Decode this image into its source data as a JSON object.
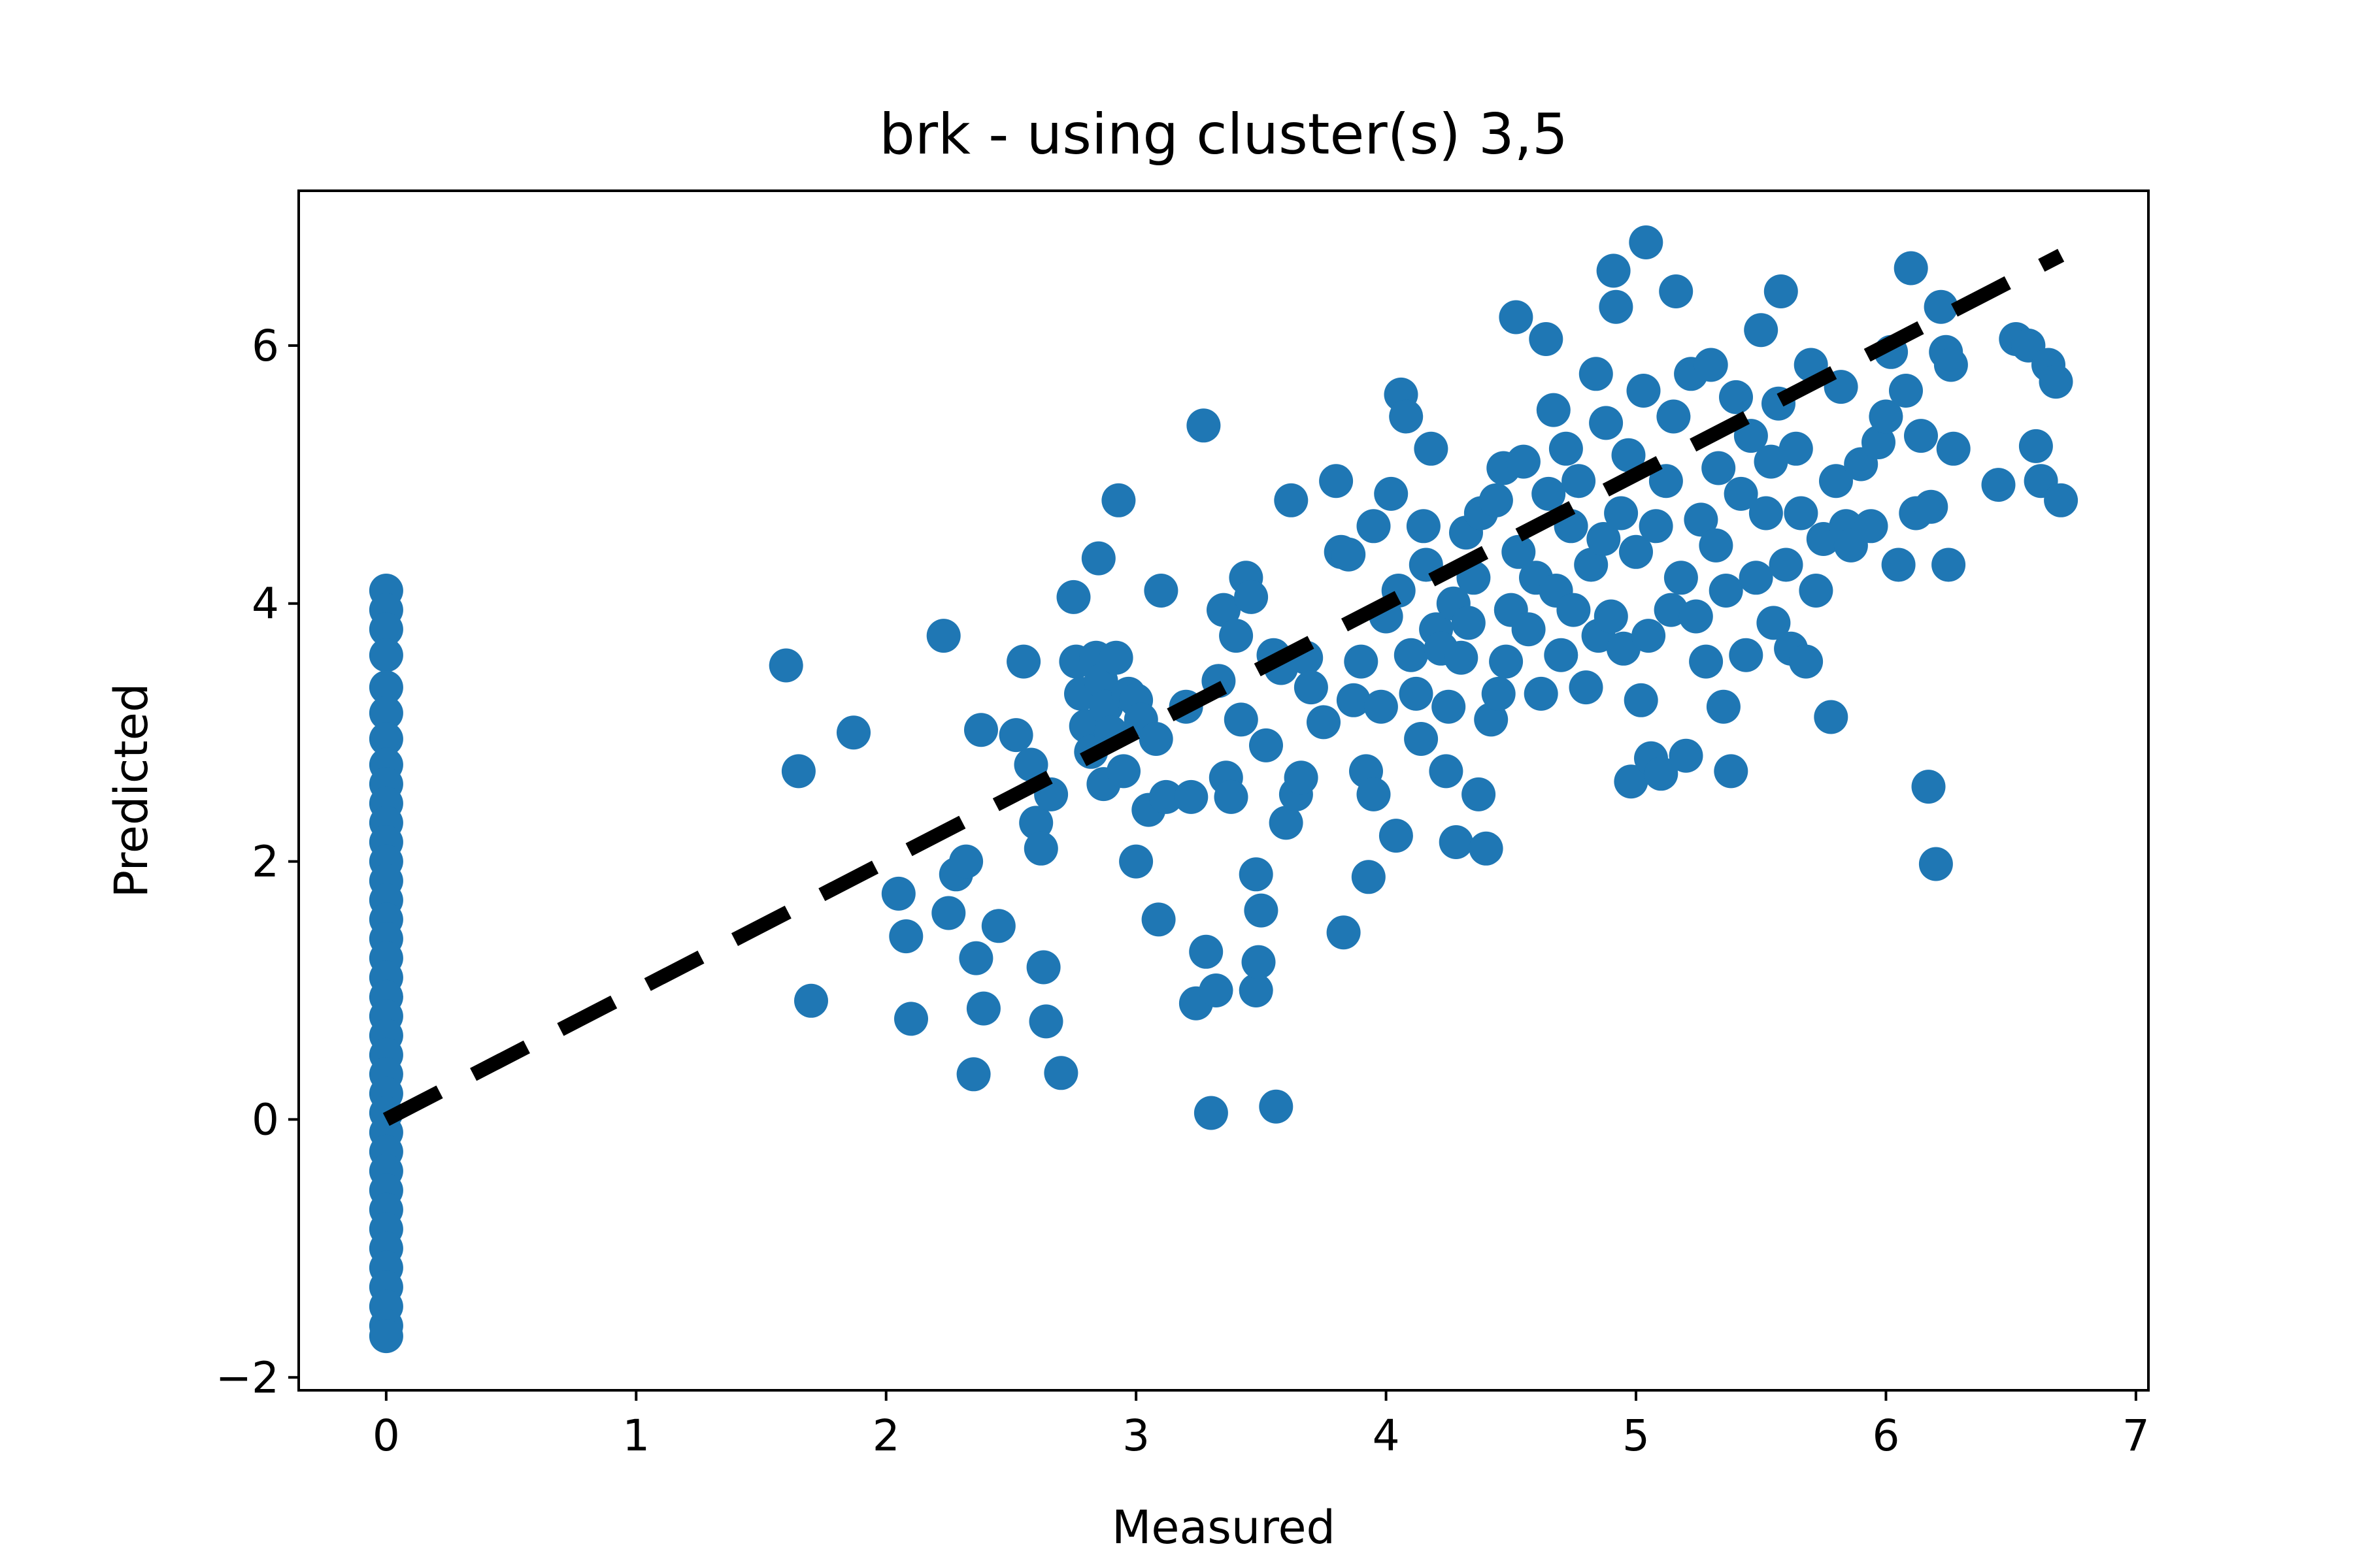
{
  "chart_data": {
    "type": "scatter",
    "title": "brk - using cluster(s) 3,5",
    "xlabel": "Measured",
    "ylabel": "Predicted",
    "xlim": [
      -0.35,
      7.05
    ],
    "ylim": [
      -2.1,
      7.2
    ],
    "xticks": [
      0,
      1,
      2,
      3,
      4,
      5,
      6,
      7
    ],
    "yticks": [
      -2,
      0,
      2,
      4,
      6
    ],
    "xtick_labels": [
      "0",
      "1",
      "2",
      "3",
      "4",
      "5",
      "6",
      "7"
    ],
    "ytick_labels": [
      "−2",
      "0",
      "2",
      "4",
      "6"
    ],
    "grid": false,
    "point_color": "#1f77b4",
    "line_color": "#000000",
    "reference_line": {
      "style": "dashed",
      "x": [
        0,
        6.7
      ],
      "y": [
        0,
        6.7
      ]
    },
    "series": [
      {
        "points": [
          [
            0,
            4.1
          ],
          [
            0,
            3.95
          ],
          [
            0,
            3.8
          ],
          [
            0,
            3.6
          ],
          [
            0,
            3.35
          ],
          [
            0,
            3.15
          ],
          [
            0,
            2.95
          ],
          [
            0,
            2.75
          ],
          [
            0,
            2.6
          ],
          [
            0,
            2.45
          ],
          [
            0,
            2.3
          ],
          [
            0,
            2.15
          ],
          [
            0,
            2.0
          ],
          [
            0,
            1.85
          ],
          [
            0,
            1.7
          ],
          [
            0,
            1.55
          ],
          [
            0,
            1.4
          ],
          [
            0,
            1.25
          ],
          [
            0,
            1.1
          ],
          [
            0,
            0.95
          ],
          [
            0,
            0.8
          ],
          [
            0,
            0.65
          ],
          [
            0,
            0.5
          ],
          [
            0,
            0.35
          ],
          [
            0,
            0.2
          ],
          [
            0,
            0.05
          ],
          [
            0,
            -0.1
          ],
          [
            0,
            -0.25
          ],
          [
            0,
            -0.4
          ],
          [
            0,
            -0.55
          ],
          [
            0,
            -0.7
          ],
          [
            0,
            -0.85
          ],
          [
            0,
            -1.0
          ],
          [
            0,
            -1.15
          ],
          [
            0,
            -1.3
          ],
          [
            0,
            -1.45
          ],
          [
            0,
            -1.6
          ],
          [
            0,
            -1.68
          ],
          [
            1.6,
            3.52
          ],
          [
            1.65,
            2.7
          ],
          [
            1.7,
            0.92
          ],
          [
            1.87,
            3.0
          ],
          [
            2.05,
            1.75
          ],
          [
            2.08,
            1.42
          ],
          [
            2.1,
            0.78
          ],
          [
            2.23,
            3.75
          ],
          [
            2.25,
            1.6
          ],
          [
            2.28,
            1.9
          ],
          [
            2.32,
            2.0
          ],
          [
            2.35,
            0.35
          ],
          [
            2.36,
            1.25
          ],
          [
            2.38,
            3.02
          ],
          [
            2.39,
            0.86
          ],
          [
            2.45,
            1.5
          ],
          [
            2.52,
            2.98
          ],
          [
            2.55,
            3.55
          ],
          [
            2.58,
            2.75
          ],
          [
            2.6,
            2.3
          ],
          [
            2.62,
            2.1
          ],
          [
            2.63,
            1.18
          ],
          [
            2.64,
            0.76
          ],
          [
            2.66,
            2.52
          ],
          [
            2.7,
            0.36
          ],
          [
            2.75,
            4.05
          ],
          [
            2.76,
            3.55
          ],
          [
            2.78,
            3.3
          ],
          [
            2.8,
            3.05
          ],
          [
            2.82,
            2.85
          ],
          [
            2.84,
            3.58
          ],
          [
            2.85,
            4.35
          ],
          [
            2.86,
            3.4
          ],
          [
            2.87,
            2.6
          ],
          [
            2.88,
            3.2
          ],
          [
            2.9,
            3.0
          ],
          [
            2.92,
            3.58
          ],
          [
            2.93,
            4.8
          ],
          [
            2.95,
            2.7
          ],
          [
            2.97,
            3.3
          ],
          [
            3.0,
            3.25
          ],
          [
            3.0,
            2.0
          ],
          [
            3.02,
            3.1
          ],
          [
            3.05,
            2.4
          ],
          [
            3.08,
            2.95
          ],
          [
            3.09,
            1.55
          ],
          [
            3.1,
            4.1
          ],
          [
            3.12,
            2.5
          ],
          [
            3.2,
            3.2
          ],
          [
            3.22,
            2.5
          ],
          [
            3.24,
            0.9
          ],
          [
            3.27,
            5.38
          ],
          [
            3.28,
            1.3
          ],
          [
            3.3,
            0.05
          ],
          [
            3.32,
            1.0
          ],
          [
            3.33,
            3.4
          ],
          [
            3.35,
            3.95
          ],
          [
            3.36,
            2.65
          ],
          [
            3.38,
            2.5
          ],
          [
            3.4,
            3.75
          ],
          [
            3.42,
            3.1
          ],
          [
            3.44,
            4.2
          ],
          [
            3.46,
            4.05
          ],
          [
            3.48,
            1.9
          ],
          [
            3.48,
            1.0
          ],
          [
            3.49,
            1.22
          ],
          [
            3.5,
            1.62
          ],
          [
            3.52,
            2.9
          ],
          [
            3.55,
            3.6
          ],
          [
            3.56,
            0.1
          ],
          [
            3.58,
            3.5
          ],
          [
            3.6,
            2.3
          ],
          [
            3.62,
            4.8
          ],
          [
            3.64,
            2.52
          ],
          [
            3.66,
            2.65
          ],
          [
            3.68,
            3.58
          ],
          [
            3.7,
            3.35
          ],
          [
            3.75,
            3.08
          ],
          [
            3.8,
            4.95
          ],
          [
            3.82,
            4.4
          ],
          [
            3.83,
            1.45
          ],
          [
            3.85,
            4.38
          ],
          [
            3.87,
            3.25
          ],
          [
            3.9,
            3.55
          ],
          [
            3.92,
            2.7
          ],
          [
            3.93,
            1.88
          ],
          [
            3.95,
            2.52
          ],
          [
            3.95,
            4.6
          ],
          [
            3.98,
            3.2
          ],
          [
            4.0,
            3.9
          ],
          [
            4.02,
            4.85
          ],
          [
            4.04,
            2.2
          ],
          [
            4.05,
            4.1
          ],
          [
            4.06,
            5.62
          ],
          [
            4.08,
            5.45
          ],
          [
            4.1,
            3.6
          ],
          [
            4.12,
            3.3
          ],
          [
            4.14,
            2.95
          ],
          [
            4.15,
            4.6
          ],
          [
            4.16,
            4.3
          ],
          [
            4.18,
            5.2
          ],
          [
            4.2,
            3.8
          ],
          [
            4.22,
            3.65
          ],
          [
            4.24,
            2.7
          ],
          [
            4.25,
            3.2
          ],
          [
            4.27,
            4.0
          ],
          [
            4.28,
            2.15
          ],
          [
            4.3,
            3.58
          ],
          [
            4.32,
            4.55
          ],
          [
            4.33,
            3.85
          ],
          [
            4.35,
            4.2
          ],
          [
            4.37,
            2.52
          ],
          [
            4.38,
            4.7
          ],
          [
            4.4,
            2.1
          ],
          [
            4.42,
            3.1
          ],
          [
            4.44,
            4.8
          ],
          [
            4.45,
            3.3
          ],
          [
            4.47,
            5.05
          ],
          [
            4.48,
            3.55
          ],
          [
            4.5,
            3.95
          ],
          [
            4.52,
            6.22
          ],
          [
            4.53,
            4.4
          ],
          [
            4.55,
            5.1
          ],
          [
            4.57,
            3.8
          ],
          [
            4.6,
            4.2
          ],
          [
            4.62,
            3.3
          ],
          [
            4.64,
            6.05
          ],
          [
            4.65,
            4.85
          ],
          [
            4.67,
            5.5
          ],
          [
            4.68,
            4.1
          ],
          [
            4.7,
            3.6
          ],
          [
            4.72,
            5.2
          ],
          [
            4.74,
            4.6
          ],
          [
            4.75,
            3.95
          ],
          [
            4.77,
            4.95
          ],
          [
            4.8,
            3.35
          ],
          [
            4.82,
            4.3
          ],
          [
            4.84,
            5.78
          ],
          [
            4.85,
            3.75
          ],
          [
            4.87,
            4.5
          ],
          [
            4.88,
            5.4
          ],
          [
            4.9,
            3.9
          ],
          [
            4.91,
            6.58
          ],
          [
            4.92,
            6.3
          ],
          [
            4.94,
            4.7
          ],
          [
            4.95,
            3.65
          ],
          [
            4.97,
            5.15
          ],
          [
            4.98,
            2.62
          ],
          [
            5.0,
            4.4
          ],
          [
            5.02,
            3.25
          ],
          [
            5.03,
            5.65
          ],
          [
            5.04,
            6.8
          ],
          [
            5.05,
            3.75
          ],
          [
            5.06,
            2.8
          ],
          [
            5.08,
            4.6
          ],
          [
            5.1,
            2.68
          ],
          [
            5.12,
            4.95
          ],
          [
            5.14,
            3.95
          ],
          [
            5.15,
            5.45
          ],
          [
            5.16,
            6.42
          ],
          [
            5.18,
            4.2
          ],
          [
            5.2,
            2.82
          ],
          [
            5.22,
            5.78
          ],
          [
            5.24,
            3.9
          ],
          [
            5.26,
            4.65
          ],
          [
            5.28,
            3.55
          ],
          [
            5.3,
            5.85
          ],
          [
            5.32,
            4.45
          ],
          [
            5.33,
            5.05
          ],
          [
            5.35,
            3.2
          ],
          [
            5.36,
            4.1
          ],
          [
            5.38,
            2.7
          ],
          [
            5.4,
            5.6
          ],
          [
            5.42,
            4.85
          ],
          [
            5.44,
            3.6
          ],
          [
            5.46,
            5.3
          ],
          [
            5.48,
            4.2
          ],
          [
            5.5,
            6.12
          ],
          [
            5.52,
            4.7
          ],
          [
            5.54,
            5.1
          ],
          [
            5.55,
            3.85
          ],
          [
            5.57,
            5.55
          ],
          [
            5.58,
            6.42
          ],
          [
            5.6,
            4.3
          ],
          [
            5.62,
            3.65
          ],
          [
            5.64,
            5.2
          ],
          [
            5.66,
            4.7
          ],
          [
            5.68,
            3.55
          ],
          [
            5.7,
            5.85
          ],
          [
            5.72,
            4.1
          ],
          [
            5.75,
            4.5
          ],
          [
            5.78,
            3.12
          ],
          [
            5.8,
            4.95
          ],
          [
            5.82,
            5.68
          ],
          [
            5.84,
            4.6
          ],
          [
            5.86,
            4.45
          ],
          [
            5.9,
            5.08
          ],
          [
            5.94,
            4.6
          ],
          [
            5.97,
            5.25
          ],
          [
            6.0,
            5.45
          ],
          [
            6.02,
            5.95
          ],
          [
            6.05,
            4.3
          ],
          [
            6.08,
            5.65
          ],
          [
            6.1,
            6.6
          ],
          [
            6.12,
            4.7
          ],
          [
            6.14,
            5.3
          ],
          [
            6.17,
            2.58
          ],
          [
            6.18,
            4.75
          ],
          [
            6.2,
            1.98
          ],
          [
            6.22,
            6.3
          ],
          [
            6.24,
            5.95
          ],
          [
            6.25,
            4.3
          ],
          [
            6.26,
            5.85
          ],
          [
            6.27,
            5.2
          ],
          [
            6.45,
            4.92
          ],
          [
            6.52,
            6.05
          ],
          [
            6.57,
            6.0
          ],
          [
            6.6,
            5.22
          ],
          [
            6.62,
            4.95
          ],
          [
            6.65,
            5.85
          ],
          [
            6.68,
            5.72
          ],
          [
            6.7,
            4.8
          ]
        ]
      }
    ]
  }
}
